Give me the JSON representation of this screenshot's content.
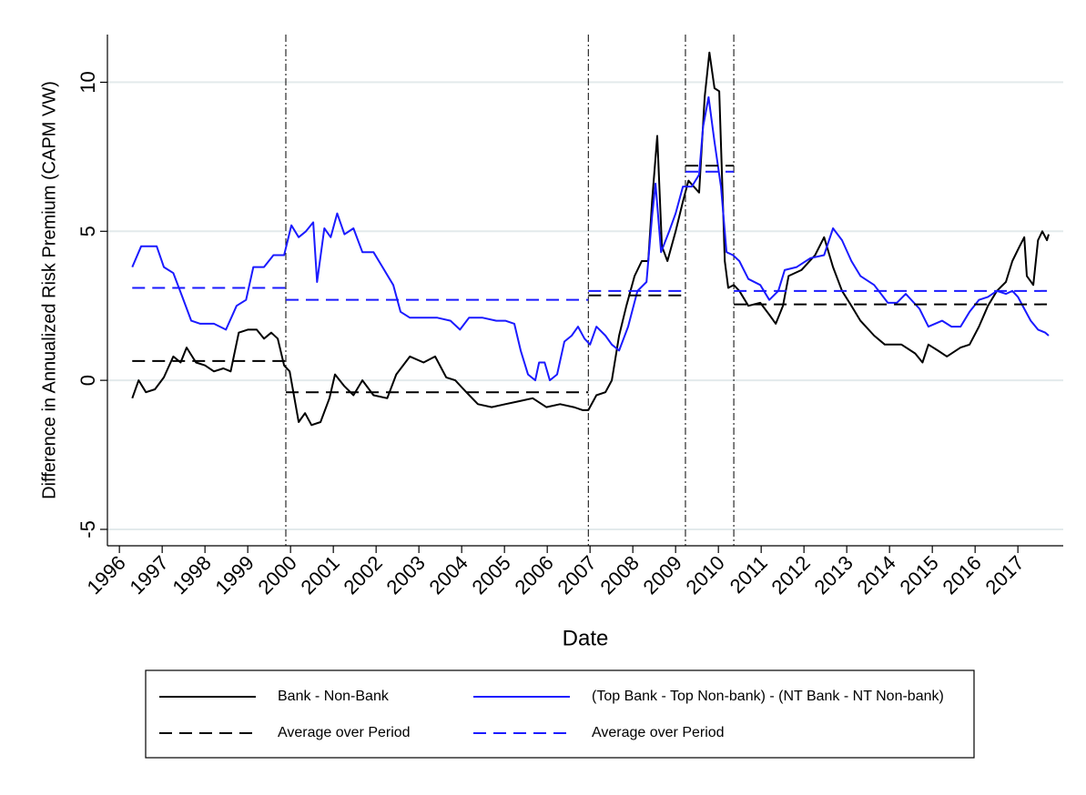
{
  "chart_data": {
    "type": "line",
    "y_label": "Difference in Annualized Risk Premium (CAPM VW)",
    "x_label": "Date",
    "xlim": [
      1995.72,
      2018.06
    ],
    "ylim": [
      -5.55,
      11.6
    ],
    "xticks": [
      1996,
      1997,
      1998,
      1999,
      2000,
      2001,
      2002,
      2003,
      2004,
      2005,
      2006,
      2007,
      2008,
      2009,
      2010,
      2011,
      2012,
      2013,
      2014,
      2015,
      2016,
      2017
    ],
    "yticks": [
      -5,
      0,
      5,
      10
    ],
    "grid": true,
    "legend": "bottom",
    "periods": [
      1996.3,
      1999.89,
      2006.96,
      2009.23,
      2010.36,
      2017.72
    ],
    "series": [
      {
        "name": "Bank - Non-Bank",
        "color": "#000000",
        "style": "solid",
        "x": [
          1996.3,
          1996.45,
          1996.62,
          1996.83,
          1997.04,
          1997.26,
          1997.43,
          1997.57,
          1997.79,
          1998.0,
          1998.21,
          1998.43,
          1998.6,
          1998.79,
          1999.0,
          1999.21,
          1999.38,
          1999.55,
          1999.7,
          1999.85,
          1999.98,
          2000.19,
          2000.34,
          2000.49,
          2000.7,
          2000.91,
          2001.04,
          2001.26,
          2001.47,
          2001.68,
          2001.94,
          2002.26,
          2002.47,
          2002.79,
          2003.11,
          2003.38,
          2003.64,
          2003.85,
          2004.11,
          2004.38,
          2004.7,
          2005.02,
          2005.34,
          2005.66,
          2005.98,
          2006.3,
          2006.62,
          2006.83,
          2006.96,
          2007.15,
          2007.36,
          2007.51,
          2007.68,
          2007.85,
          2008.04,
          2008.21,
          2008.36,
          2008.45,
          2008.57,
          2008.68,
          2008.81,
          2009.0,
          2009.17,
          2009.3,
          2009.55,
          2009.68,
          2009.79,
          2009.91,
          2010.02,
          2010.15,
          2010.23,
          2010.36,
          2010.49,
          2010.7,
          2010.98,
          2011.19,
          2011.34,
          2011.51,
          2011.64,
          2011.94,
          2012.26,
          2012.47,
          2012.68,
          2012.89,
          2013.11,
          2013.32,
          2013.64,
          2013.89,
          2014.28,
          2014.6,
          2014.77,
          2014.91,
          2015.13,
          2015.34,
          2015.66,
          2015.87,
          2016.09,
          2016.3,
          2016.51,
          2016.72,
          2016.87,
          2017.04,
          2017.15,
          2017.21,
          2017.36,
          2017.47,
          2017.57,
          2017.68,
          2017.72
        ],
        "values": [
          -0.6,
          0,
          -0.4,
          -0.3,
          0.1,
          0.8,
          0.6,
          1.1,
          0.6,
          0.5,
          0.3,
          0.4,
          0.3,
          1.6,
          1.7,
          1.7,
          1.4,
          1.6,
          1.4,
          0.5,
          0.3,
          -1.4,
          -1.1,
          -1.5,
          -1.4,
          -0.6,
          0.2,
          -0.2,
          -0.5,
          0,
          -0.5,
          -0.6,
          0.2,
          0.8,
          0.6,
          0.8,
          0.1,
          0,
          -0.4,
          -0.8,
          -0.9,
          -0.8,
          -0.7,
          -0.6,
          -0.9,
          -0.8,
          -0.9,
          -1.0,
          -1.0,
          -0.5,
          -0.4,
          0,
          1.5,
          2.5,
          3.5,
          4.0,
          4.0,
          6.0,
          8.2,
          4.5,
          4.0,
          5.0,
          6.0,
          6.7,
          6.3,
          9.5,
          11.0,
          9.8,
          9.7,
          4.0,
          3.1,
          3.2,
          3.0,
          2.5,
          2.6,
          2.2,
          1.9,
          2.5,
          3.5,
          3.7,
          4.2,
          4.8,
          3.8,
          3.0,
          2.5,
          2.0,
          1.5,
          1.2,
          1.2,
          0.9,
          0.6,
          1.2,
          1.0,
          0.8,
          1.1,
          1.2,
          1.8,
          2.5,
          3.0,
          3.3,
          4.0,
          4.5,
          4.8,
          3.5,
          3.2,
          4.7,
          5.0,
          4.7,
          4.9
        ]
      },
      {
        "name": "(Top Bank - Top Non-bank) - (NT Bank - NT Non-bank)",
        "color": "#1a1aff",
        "style": "solid",
        "x": [
          1996.3,
          1996.51,
          1996.72,
          1996.87,
          1997.04,
          1997.26,
          1997.47,
          1997.68,
          1997.89,
          1998.21,
          1998.49,
          1998.74,
          1998.96,
          1999.13,
          1999.38,
          1999.6,
          1999.85,
          2000.02,
          2000.19,
          2000.36,
          2000.53,
          2000.62,
          2000.79,
          2000.94,
          2001.09,
          2001.26,
          2001.47,
          2001.68,
          2001.94,
          2002.15,
          2002.4,
          2002.57,
          2002.79,
          2003.11,
          2003.43,
          2003.74,
          2003.96,
          2004.17,
          2004.49,
          2004.81,
          2005.02,
          2005.23,
          2005.38,
          2005.55,
          2005.72,
          2005.81,
          2005.94,
          2006.06,
          2006.23,
          2006.4,
          2006.57,
          2006.72,
          2006.87,
          2007.0,
          2007.15,
          2007.36,
          2007.51,
          2007.68,
          2007.89,
          2008.11,
          2008.32,
          2008.45,
          2008.53,
          2008.66,
          2008.85,
          2009.0,
          2009.17,
          2009.38,
          2009.55,
          2009.64,
          2009.77,
          2009.91,
          2010.06,
          2010.19,
          2010.34,
          2010.49,
          2010.7,
          2010.98,
          2011.19,
          2011.4,
          2011.55,
          2011.83,
          2012.15,
          2012.47,
          2012.68,
          2012.89,
          2013.11,
          2013.32,
          2013.64,
          2013.96,
          2014.17,
          2014.38,
          2014.7,
          2014.91,
          2015.23,
          2015.45,
          2015.66,
          2015.87,
          2016.09,
          2016.3,
          2016.51,
          2016.72,
          2016.87,
          2017.0,
          2017.15,
          2017.3,
          2017.47,
          2017.64,
          2017.72
        ],
        "values": [
          3.8,
          4.5,
          4.5,
          4.5,
          3.8,
          3.6,
          2.8,
          2.0,
          1.9,
          1.9,
          1.7,
          2.5,
          2.7,
          3.8,
          3.8,
          4.2,
          4.2,
          5.2,
          4.8,
          5.0,
          5.3,
          3.3,
          5.1,
          4.8,
          5.6,
          4.9,
          5.1,
          4.3,
          4.3,
          3.8,
          3.2,
          2.3,
          2.1,
          2.1,
          2.1,
          2.0,
          1.7,
          2.1,
          2.1,
          2.0,
          2.0,
          1.9,
          1.0,
          0.2,
          0,
          0.6,
          0.6,
          0,
          0.2,
          1.3,
          1.5,
          1.8,
          1.4,
          1.2,
          1.8,
          1.5,
          1.2,
          1.0,
          1.8,
          3.0,
          3.3,
          5.5,
          6.6,
          4.3,
          5.0,
          5.6,
          6.5,
          6.5,
          6.9,
          8.5,
          9.5,
          8.0,
          6.5,
          4.3,
          4.2,
          4.0,
          3.4,
          3.2,
          2.7,
          3.0,
          3.7,
          3.8,
          4.1,
          4.2,
          5.1,
          4.7,
          4.0,
          3.5,
          3.2,
          2.6,
          2.6,
          2.9,
          2.4,
          1.8,
          2.0,
          1.8,
          1.8,
          2.3,
          2.7,
          2.8,
          3.0,
          2.9,
          3.0,
          2.8,
          2.4,
          2.0,
          1.7,
          1.6,
          1.5
        ]
      },
      {
        "name": "Average over Period",
        "color": "#000000",
        "style": "dash",
        "values": [
          0.65,
          -0.4,
          2.85,
          7.2,
          2.55
        ]
      },
      {
        "name": "Average over Period",
        "color": "#1a1aff",
        "style": "dash",
        "values": [
          3.1,
          2.7,
          3.0,
          7.0,
          3.0
        ]
      }
    ]
  }
}
